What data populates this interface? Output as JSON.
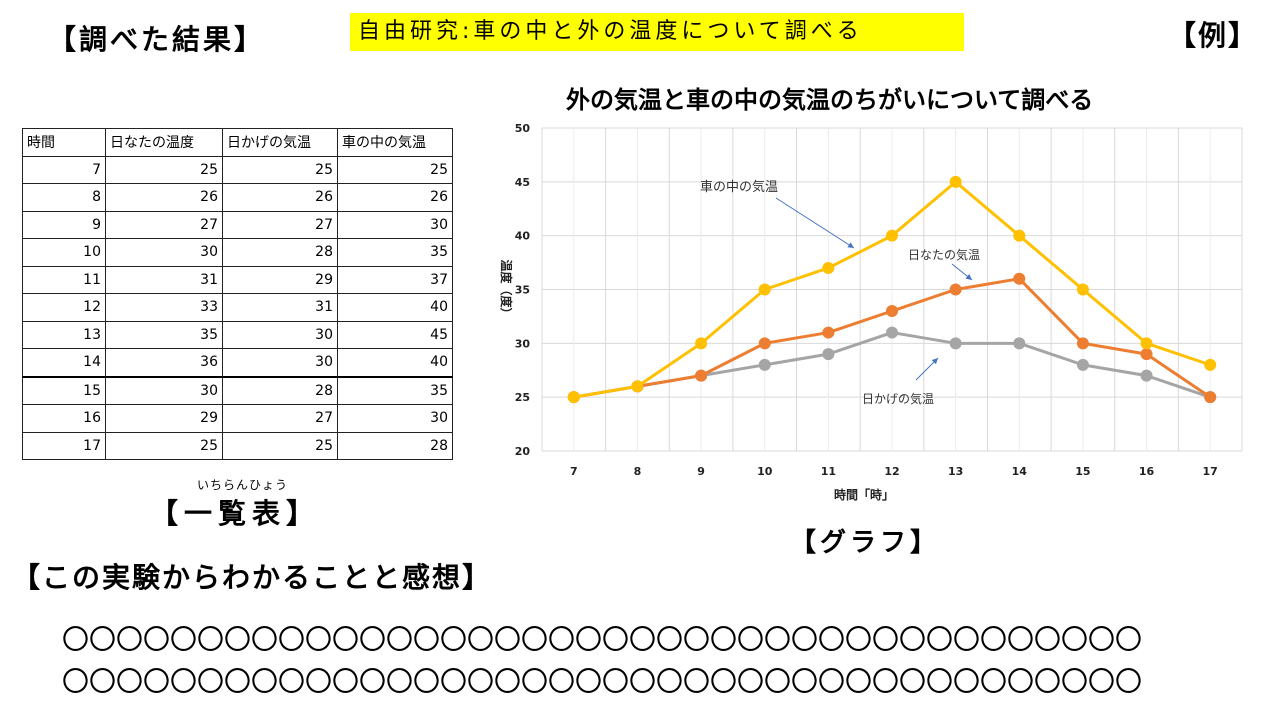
{
  "header": {
    "results_heading": "【調べた結果】",
    "banner": "自由研究:車の中と外の温度について調べる",
    "example_tag": "【例】"
  },
  "table": {
    "headers": [
      "時間",
      "日なたの温度",
      "日かげの気温",
      "車の中の気温"
    ],
    "rows": [
      [
        "7",
        "25",
        "25",
        "25"
      ],
      [
        "8",
        "26",
        "26",
        "26"
      ],
      [
        "9",
        "27",
        "27",
        "30"
      ],
      [
        "10",
        "30",
        "28",
        "35"
      ],
      [
        "11",
        "31",
        "29",
        "37"
      ],
      [
        "12",
        "33",
        "31",
        "40"
      ],
      [
        "13",
        "35",
        "30",
        "45"
      ],
      [
        "14",
        "36",
        "30",
        "40"
      ],
      [
        "15",
        "30",
        "28",
        "35"
      ],
      [
        "16",
        "29",
        "27",
        "30"
      ],
      [
        "17",
        "25",
        "25",
        "28"
      ]
    ],
    "label": "【一覧表】",
    "label_reading": "いちらんひょう"
  },
  "chart_data": {
    "type": "line",
    "title": "外の気温と車の中の気温のちがいについて調べる",
    "xlabel": "時間「時」",
    "ylabel": "温度（度）",
    "x": [
      7,
      8,
      9,
      10,
      11,
      12,
      13,
      14,
      15,
      16,
      17
    ],
    "ylim": [
      20,
      50
    ],
    "yticks": [
      20,
      25,
      30,
      35,
      40,
      45,
      50
    ],
    "grid": true,
    "series": [
      {
        "name": "車の中の気温",
        "color": "#FFC000",
        "values": [
          25,
          26,
          30,
          35,
          37,
          40,
          45,
          40,
          35,
          30,
          28
        ]
      },
      {
        "name": "日なたの気温",
        "color": "#ED7D31",
        "values": [
          25,
          26,
          27,
          30,
          31,
          33,
          35,
          36,
          30,
          29,
          25
        ]
      },
      {
        "name": "日かげの気温",
        "color": "#A5A5A5",
        "values": [
          25,
          26,
          27,
          28,
          29,
          31,
          30,
          30,
          28,
          27,
          25
        ]
      }
    ],
    "annotation_color": "#4472C4"
  },
  "graph_label": "【グラフ】",
  "conclusion": {
    "heading": "【この実験からわかることと感想】",
    "line1": "〇〇〇〇〇〇〇〇〇〇〇〇〇〇〇〇〇〇〇〇〇〇〇〇〇〇〇〇〇〇〇〇〇〇〇〇〇〇〇〇",
    "line2": "〇〇〇〇〇〇〇〇〇〇〇〇〇〇〇〇〇〇〇〇〇〇〇〇〇〇〇〇〇〇〇〇〇〇〇〇〇〇〇〇"
  }
}
